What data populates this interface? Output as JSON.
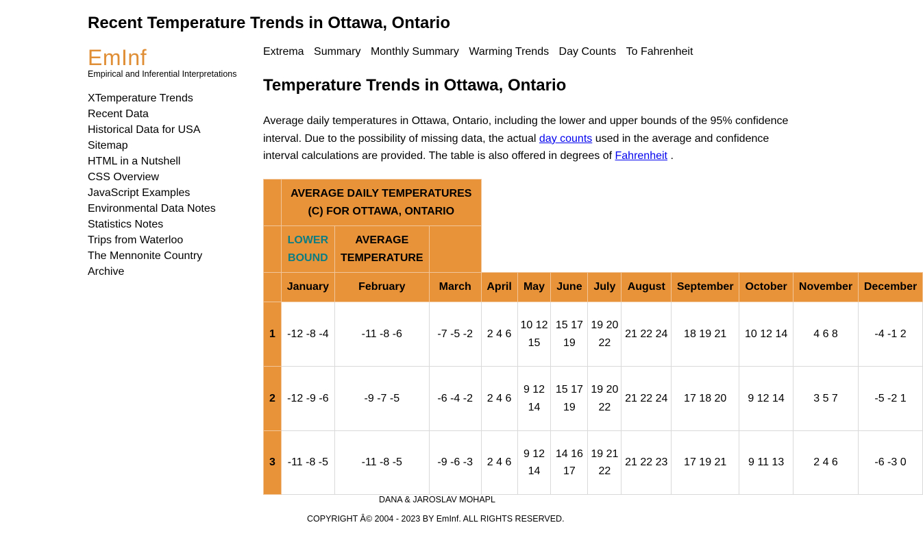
{
  "page_title": "Recent Temperature Trends in Ottawa, Ontario",
  "logo": {
    "text": "EmInf",
    "tagline": "Empirical and Inferential Interpretations"
  },
  "sidebar": {
    "items": [
      {
        "label": "XTemperature Trends"
      },
      {
        "label": "Recent Data"
      },
      {
        "label": "Historical Data for USA"
      },
      {
        "label": "Sitemap"
      },
      {
        "label": "HTML in a Nutshell"
      },
      {
        "label": "CSS Overview"
      },
      {
        "label": "JavaScript Examples"
      },
      {
        "label": "Environmental Data Notes"
      },
      {
        "label": "Statistics Notes"
      },
      {
        "label": "Trips from Waterloo"
      },
      {
        "label": "The Mennonite Country"
      },
      {
        "label": "Archive"
      }
    ]
  },
  "topnav": {
    "items": [
      {
        "label": "Extrema"
      },
      {
        "label": "Summary"
      },
      {
        "label": "Monthly Summary"
      },
      {
        "label": "Warming Trends"
      },
      {
        "label": "Day Counts"
      },
      {
        "label": "To Fahrenheit"
      }
    ]
  },
  "content": {
    "title": "Temperature Trends in Ottawa, Ontario",
    "intro_part1": "Average daily temperatures in Ottawa, Ontario, including the lower and upper bounds of the 95% confidence interval. Due to the possibility of missing data, the actual",
    "intro_link1": "day counts",
    "intro_part2": "used in the average and confidence interval calculations are provided. The table is also offered in degrees of",
    "intro_link2": "Fahrenheit",
    "intro_part3": "."
  },
  "table": {
    "caption": "AVERAGE DAILY TEMPERATURES (C) FOR OTTAWA, ONTARIO",
    "legend_lower": "LOWER BOUND",
    "legend_avg": "AVERAGE TEMPERATURE",
    "months": [
      "January",
      "February",
      "March",
      "April",
      "May",
      "June",
      "July",
      "August",
      "September",
      "October",
      "November",
      "December"
    ],
    "rows": [
      {
        "day": "1",
        "cells": [
          "-12 -8 -4",
          "-11 -8 -6",
          "-7 -5 -2",
          "2 4 6",
          "10 12 15",
          "15 17 19",
          "19 20 22",
          "21 22 24",
          "18 19 21",
          "10 12 14",
          "4 6 8",
          "-4 -1 2"
        ]
      },
      {
        "day": "2",
        "cells": [
          "-12 -9 -6",
          "-9 -7 -5",
          "-6 -4 -2",
          "2 4 6",
          "9 12 14",
          "15 17 19",
          "19 20 22",
          "21 22 24",
          "17 18 20",
          "9 12 14",
          "3 5 7",
          "-5 -2 1"
        ]
      },
      {
        "day": "3",
        "cells": [
          "-11 -8 -5",
          "-11 -8 -5",
          "-9 -6 -3",
          "2 4 6",
          "9 12 14",
          "14 16 17",
          "19 21 22",
          "21 22 23",
          "17 19 21",
          "9 11 13",
          "2 4 6",
          "-6 -3 0"
        ]
      }
    ]
  },
  "footer": {
    "credit": "DANA & JAROSLAV MOHAPL",
    "copyright": "COPYRIGHT Â© 2004 - 2023 BY EmInf. ALL RIGHTS RESERVED."
  }
}
